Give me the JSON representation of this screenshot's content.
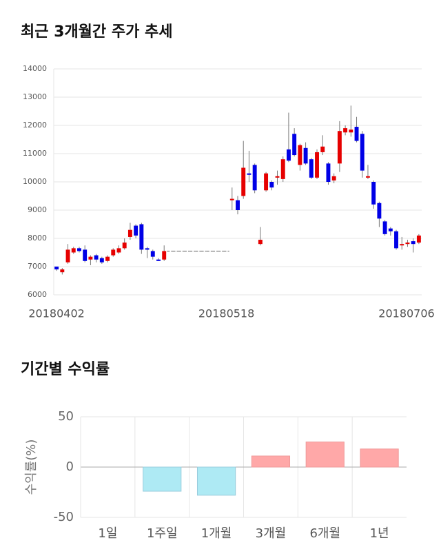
{
  "chart_data": [
    {
      "type": "candlestick",
      "title": "최근 3개월간 주가 추세",
      "categories": [
        "20180402",
        null,
        null,
        null,
        null,
        null,
        null,
        null,
        null,
        null,
        null,
        null,
        null,
        null,
        null,
        null,
        null,
        null,
        null,
        null,
        null,
        null,
        null,
        null,
        null,
        null,
        null,
        null,
        null,
        null,
        "20180518",
        null,
        null,
        null,
        null,
        null,
        null,
        null,
        null,
        null,
        null,
        null,
        null,
        null,
        null,
        null,
        null,
        null,
        null,
        null,
        null,
        null,
        null,
        null,
        null,
        null,
        null,
        null,
        null,
        null,
        null,
        null,
        "20180706",
        null,
        null
      ],
      "open": [
        7000,
        6800,
        7150,
        7500,
        7650,
        7600,
        7250,
        7400,
        7300,
        7200,
        7400,
        7500,
        7650,
        8050,
        8450,
        8500,
        7650,
        7550,
        7250,
        7250,
        7550,
        7550,
        7550,
        7550,
        7550,
        7550,
        7550,
        7550,
        7550,
        7550,
        7550,
        9350,
        9350,
        9500,
        10300,
        10600,
        7800,
        9700,
        10000,
        10150,
        10100,
        11150,
        11700,
        10600,
        11200,
        10800,
        10150,
        11050,
        10650,
        10050,
        10650,
        11750,
        11750,
        11950,
        11700,
        10150,
        10000,
        9250,
        8600,
        8350,
        8250,
        7750,
        7800,
        7900,
        7850
      ],
      "high": [
        7000,
        6950,
        7800,
        7700,
        7700,
        7750,
        7400,
        7450,
        7350,
        7400,
        7650,
        7750,
        8000,
        8550,
        8500,
        8550,
        7700,
        7600,
        7300,
        7750,
        7550,
        7550,
        7550,
        7550,
        7550,
        7550,
        7550,
        7550,
        7550,
        7550,
        7550,
        9800,
        9500,
        11450,
        11100,
        10650,
        8400,
        10350,
        10050,
        10400,
        10900,
        12450,
        11900,
        11350,
        11400,
        10850,
        11150,
        11650,
        10700,
        10300,
        12150,
        12000,
        12700,
        12300,
        11800,
        10600,
        10050,
        9300,
        8650,
        8400,
        8300,
        8050,
        7950,
        8000,
        8150
      ],
      "low": [
        6850,
        6720,
        7100,
        7450,
        7500,
        7150,
        7050,
        7150,
        7100,
        7150,
        7350,
        7450,
        7600,
        7950,
        8000,
        7450,
        7300,
        7250,
        7200,
        7200,
        7550,
        7550,
        7550,
        7550,
        7550,
        7550,
        7550,
        7550,
        7550,
        7550,
        7550,
        9000,
        8850,
        9400,
        10000,
        9600,
        7750,
        9650,
        9700,
        9900,
        10000,
        10700,
        10900,
        10400,
        10600,
        10100,
        10100,
        10950,
        9900,
        9950,
        10350,
        11650,
        11600,
        11400,
        10150,
        10100,
        9050,
        8400,
        8100,
        8100,
        7600,
        7600,
        7700,
        7500,
        7800
      ],
      "close": [
        6900,
        6900,
        7600,
        7650,
        7550,
        7200,
        7350,
        7250,
        7150,
        7350,
        7600,
        7650,
        7850,
        8300,
        8100,
        7600,
        7600,
        7350,
        7200,
        7550,
        7550,
        7550,
        7550,
        7550,
        7550,
        7550,
        7550,
        7550,
        7550,
        7550,
        7550,
        9400,
        9000,
        10500,
        10250,
        9700,
        7950,
        10300,
        9800,
        10200,
        10800,
        10750,
        10950,
        11300,
        10650,
        10150,
        11050,
        11250,
        10000,
        10200,
        11800,
        11900,
        11850,
        11450,
        10400,
        10200,
        9200,
        8700,
        8150,
        8250,
        7650,
        7800,
        7850,
        7800,
        8100
      ],
      "up_color": "#e60000",
      "down_color": "#0000e6",
      "ylim": [
        6000,
        14000
      ],
      "yticks": [
        6000,
        7000,
        8000,
        9000,
        10000,
        11000,
        12000,
        13000,
        14000
      ],
      "grid": true
    },
    {
      "type": "bar",
      "title": "기간별 수익률",
      "y_label": "수익률(%)",
      "categories": [
        "1일",
        "1주일",
        "1개월",
        "3개월",
        "6개월",
        "1년"
      ],
      "values": [
        0,
        -24,
        -28,
        11,
        25,
        18
      ],
      "positive_color": "#ffa8a8",
      "negative_color": "#aeeaf4",
      "ylim": [
        -50,
        50
      ],
      "yticks": [
        -50,
        0,
        50
      ],
      "grid": true
    }
  ]
}
